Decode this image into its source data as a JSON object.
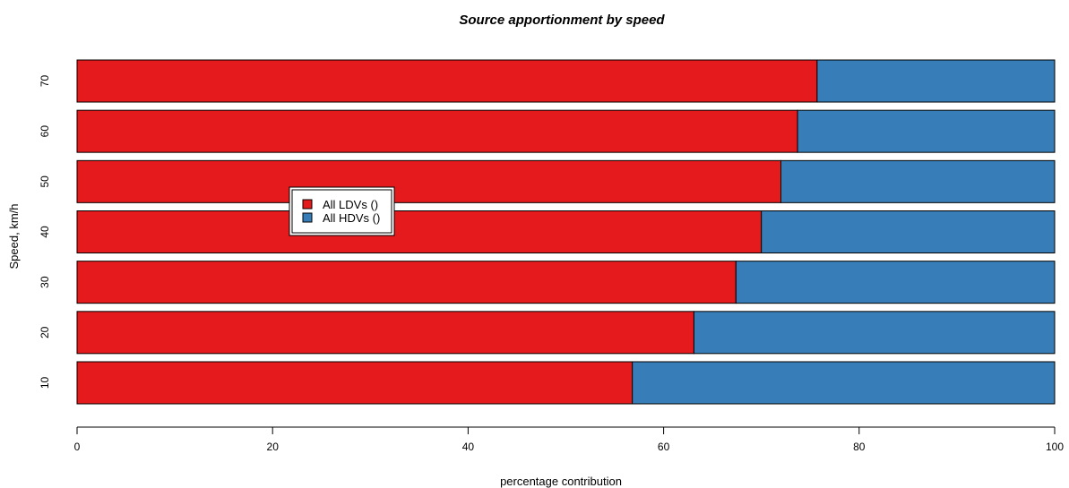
{
  "chart_data": {
    "type": "bar",
    "orientation": "horizontal",
    "stacked": true,
    "title": "Source apportionment by speed",
    "xlabel": "percentage contribution",
    "ylabel": "Speed, km/h",
    "categories": [
      "10",
      "20",
      "30",
      "40",
      "50",
      "60",
      "70"
    ],
    "series": [
      {
        "name": "All LDVs ()",
        "color": "#e41a1c",
        "values": [
          56.8,
          63.1,
          67.4,
          70.0,
          72.0,
          73.7,
          75.7
        ]
      },
      {
        "name": "All HDVs ()",
        "color": "#377eb8",
        "values": [
          43.2,
          36.9,
          32.6,
          30.0,
          28.0,
          26.3,
          24.3
        ]
      }
    ],
    "xlim": [
      0,
      100
    ],
    "xticks": [
      "0",
      "20",
      "40",
      "60",
      "80",
      "100"
    ],
    "grid": false,
    "legend_position": "left-center"
  }
}
